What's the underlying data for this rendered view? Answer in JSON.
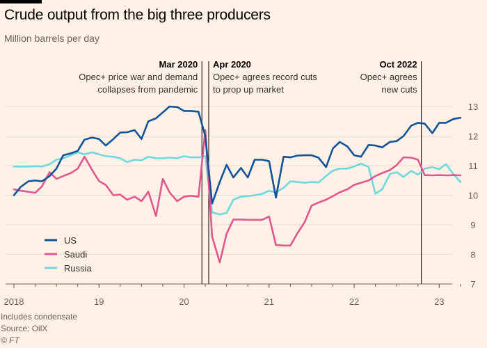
{
  "chart_data": {
    "type": "line",
    "title": "Crude output from the big three producers",
    "subtitle": "Million barrels per day",
    "ylim": [
      7,
      13
    ],
    "yticks": [
      7,
      8,
      9,
      10,
      11,
      12,
      13
    ],
    "y_axis_side": "right",
    "x_range": [
      2018.0,
      2023.3
    ],
    "xticks": [
      {
        "value": 2018,
        "label": "2018"
      },
      {
        "value": 2019,
        "label": "19"
      },
      {
        "value": 2020,
        "label": "20"
      },
      {
        "value": 2021,
        "label": "21"
      },
      {
        "value": 2022,
        "label": "22"
      },
      {
        "value": 2023,
        "label": "23"
      }
    ],
    "grid": true,
    "legend_position": "bottom-left",
    "series": [
      {
        "name": "US",
        "color": "#0f5499",
        "points": [
          [
            2018.0,
            10.0
          ],
          [
            2018.08,
            10.28
          ],
          [
            2018.17,
            10.47
          ],
          [
            2018.25,
            10.5
          ],
          [
            2018.33,
            10.47
          ],
          [
            2018.42,
            10.65
          ],
          [
            2018.5,
            10.9
          ],
          [
            2018.58,
            11.35
          ],
          [
            2018.67,
            11.42
          ],
          [
            2018.75,
            11.5
          ],
          [
            2018.83,
            11.88
          ],
          [
            2018.92,
            11.95
          ],
          [
            2019.0,
            11.9
          ],
          [
            2019.08,
            11.68
          ],
          [
            2019.17,
            11.9
          ],
          [
            2019.25,
            12.12
          ],
          [
            2019.33,
            12.13
          ],
          [
            2019.42,
            12.2
          ],
          [
            2019.5,
            11.9
          ],
          [
            2019.58,
            12.5
          ],
          [
            2019.67,
            12.6
          ],
          [
            2019.75,
            12.8
          ],
          [
            2019.83,
            13.0
          ],
          [
            2019.92,
            12.98
          ],
          [
            2020.0,
            12.85
          ],
          [
            2020.08,
            12.85
          ],
          [
            2020.17,
            12.82
          ],
          [
            2020.25,
            12.0
          ],
          [
            2020.33,
            9.72
          ],
          [
            2020.42,
            10.45
          ],
          [
            2020.5,
            11.03
          ],
          [
            2020.58,
            10.6
          ],
          [
            2020.67,
            10.92
          ],
          [
            2020.75,
            10.6
          ],
          [
            2020.83,
            11.2
          ],
          [
            2020.92,
            11.2
          ],
          [
            2021.0,
            11.15
          ],
          [
            2021.08,
            9.92
          ],
          [
            2021.17,
            11.3
          ],
          [
            2021.25,
            11.28
          ],
          [
            2021.33,
            11.34
          ],
          [
            2021.42,
            11.35
          ],
          [
            2021.5,
            11.35
          ],
          [
            2021.58,
            11.27
          ],
          [
            2021.67,
            10.95
          ],
          [
            2021.75,
            11.58
          ],
          [
            2021.83,
            11.8
          ],
          [
            2021.92,
            11.65
          ],
          [
            2022.0,
            11.35
          ],
          [
            2022.08,
            11.3
          ],
          [
            2022.17,
            11.7
          ],
          [
            2022.25,
            11.68
          ],
          [
            2022.33,
            11.62
          ],
          [
            2022.42,
            11.8
          ],
          [
            2022.5,
            11.83
          ],
          [
            2022.58,
            12.0
          ],
          [
            2022.67,
            12.35
          ],
          [
            2022.75,
            12.45
          ],
          [
            2022.83,
            12.42
          ],
          [
            2022.92,
            12.1
          ],
          [
            2023.0,
            12.45
          ],
          [
            2023.08,
            12.45
          ],
          [
            2023.17,
            12.58
          ],
          [
            2023.25,
            12.62
          ]
        ]
      },
      {
        "name": "Saudi",
        "color": "#e0578f",
        "points": [
          [
            2018.0,
            10.2
          ],
          [
            2018.08,
            10.15
          ],
          [
            2018.17,
            10.12
          ],
          [
            2018.25,
            10.08
          ],
          [
            2018.33,
            10.3
          ],
          [
            2018.42,
            10.78
          ],
          [
            2018.5,
            10.55
          ],
          [
            2018.58,
            10.65
          ],
          [
            2018.67,
            10.75
          ],
          [
            2018.75,
            10.9
          ],
          [
            2018.83,
            11.3
          ],
          [
            2018.92,
            10.85
          ],
          [
            2019.0,
            10.48
          ],
          [
            2019.08,
            10.35
          ],
          [
            2019.17,
            10.0
          ],
          [
            2019.25,
            10.02
          ],
          [
            2019.33,
            9.85
          ],
          [
            2019.42,
            9.95
          ],
          [
            2019.5,
            9.8
          ],
          [
            2019.58,
            10.12
          ],
          [
            2019.67,
            9.3
          ],
          [
            2019.75,
            10.55
          ],
          [
            2019.83,
            10.1
          ],
          [
            2019.92,
            9.8
          ],
          [
            2020.0,
            9.95
          ],
          [
            2020.08,
            9.98
          ],
          [
            2020.17,
            9.95
          ],
          [
            2020.25,
            12.2
          ],
          [
            2020.33,
            8.6
          ],
          [
            2020.42,
            7.73
          ],
          [
            2020.5,
            8.7
          ],
          [
            2020.58,
            9.18
          ],
          [
            2020.67,
            9.18
          ],
          [
            2020.75,
            9.17
          ],
          [
            2020.83,
            9.17
          ],
          [
            2020.92,
            9.17
          ],
          [
            2021.0,
            9.28
          ],
          [
            2021.08,
            8.32
          ],
          [
            2021.17,
            8.3
          ],
          [
            2021.25,
            8.3
          ],
          [
            2021.33,
            8.7
          ],
          [
            2021.42,
            9.1
          ],
          [
            2021.5,
            9.65
          ],
          [
            2021.58,
            9.75
          ],
          [
            2021.67,
            9.85
          ],
          [
            2021.75,
            9.97
          ],
          [
            2021.83,
            10.1
          ],
          [
            2021.92,
            10.2
          ],
          [
            2022.0,
            10.35
          ],
          [
            2022.08,
            10.42
          ],
          [
            2022.17,
            10.5
          ],
          [
            2022.25,
            10.65
          ],
          [
            2022.33,
            10.75
          ],
          [
            2022.42,
            10.85
          ],
          [
            2022.5,
            11.02
          ],
          [
            2022.58,
            11.28
          ],
          [
            2022.67,
            11.27
          ],
          [
            2022.75,
            11.2
          ],
          [
            2022.83,
            10.68
          ],
          [
            2022.92,
            10.67
          ],
          [
            2023.0,
            10.68
          ],
          [
            2023.08,
            10.67
          ],
          [
            2023.17,
            10.68
          ],
          [
            2023.25,
            10.67
          ]
        ]
      },
      {
        "name": "Russia",
        "color": "#6fd8df",
        "points": [
          [
            2018.0,
            10.97
          ],
          [
            2018.08,
            10.97
          ],
          [
            2018.17,
            10.97
          ],
          [
            2018.25,
            10.98
          ],
          [
            2018.33,
            10.97
          ],
          [
            2018.42,
            11.05
          ],
          [
            2018.5,
            11.2
          ],
          [
            2018.58,
            11.25
          ],
          [
            2018.67,
            11.35
          ],
          [
            2018.75,
            11.45
          ],
          [
            2018.83,
            11.38
          ],
          [
            2018.92,
            11.45
          ],
          [
            2019.0,
            11.38
          ],
          [
            2019.08,
            11.32
          ],
          [
            2019.17,
            11.3
          ],
          [
            2019.25,
            11.25
          ],
          [
            2019.33,
            11.12
          ],
          [
            2019.42,
            11.2
          ],
          [
            2019.5,
            11.18
          ],
          [
            2019.58,
            11.3
          ],
          [
            2019.67,
            11.25
          ],
          [
            2019.75,
            11.25
          ],
          [
            2019.83,
            11.27
          ],
          [
            2019.92,
            11.25
          ],
          [
            2020.0,
            11.32
          ],
          [
            2020.08,
            11.28
          ],
          [
            2020.17,
            11.28
          ],
          [
            2020.25,
            11.32
          ],
          [
            2020.33,
            9.42
          ],
          [
            2020.42,
            9.35
          ],
          [
            2020.5,
            9.4
          ],
          [
            2020.58,
            9.85
          ],
          [
            2020.67,
            9.95
          ],
          [
            2020.75,
            9.97
          ],
          [
            2020.83,
            10.0
          ],
          [
            2020.92,
            10.05
          ],
          [
            2021.0,
            10.15
          ],
          [
            2021.08,
            10.1
          ],
          [
            2021.17,
            10.25
          ],
          [
            2021.25,
            10.47
          ],
          [
            2021.33,
            10.45
          ],
          [
            2021.42,
            10.42
          ],
          [
            2021.5,
            10.45
          ],
          [
            2021.58,
            10.43
          ],
          [
            2021.67,
            10.65
          ],
          [
            2021.75,
            10.83
          ],
          [
            2021.83,
            10.9
          ],
          [
            2021.92,
            10.9
          ],
          [
            2022.0,
            10.97
          ],
          [
            2022.08,
            11.07
          ],
          [
            2022.17,
            10.95
          ],
          [
            2022.25,
            10.05
          ],
          [
            2022.33,
            10.2
          ],
          [
            2022.42,
            10.72
          ],
          [
            2022.5,
            10.78
          ],
          [
            2022.58,
            10.62
          ],
          [
            2022.67,
            10.82
          ],
          [
            2022.75,
            10.7
          ],
          [
            2022.83,
            10.9
          ],
          [
            2022.92,
            10.95
          ],
          [
            2023.0,
            10.88
          ],
          [
            2023.08,
            11.05
          ],
          [
            2023.17,
            10.7
          ],
          [
            2023.25,
            10.45
          ]
        ]
      }
    ],
    "annotations": [
      {
        "x": 2020.21,
        "title": "Mar 2020",
        "lines": [
          "Opec+ price war and demand",
          "collapses from pandemic"
        ],
        "align": "right"
      },
      {
        "x": 2020.29,
        "title": "Apr 2020",
        "lines": [
          "Opec+ agrees record cuts",
          "to prop up market"
        ],
        "align": "left"
      },
      {
        "x": 2022.79,
        "title": "Oct 2022",
        "lines": [
          "Opec+ agrees",
          "new cuts"
        ],
        "align": "right"
      }
    ]
  },
  "footer": {
    "note": "Includes condensate",
    "source": "Source: OilX",
    "copyright": "© FT"
  }
}
